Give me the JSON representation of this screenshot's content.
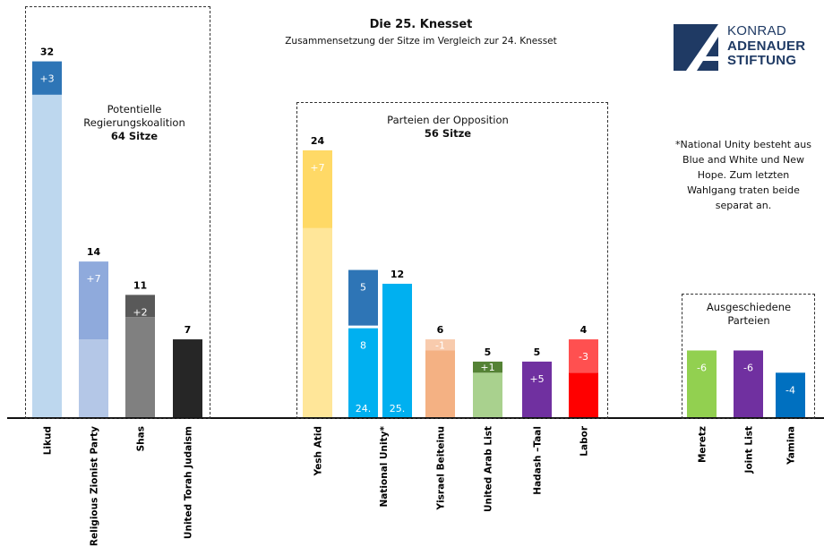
{
  "header": {
    "title": "Die 25. Knesset",
    "subtitle": "Zusammensetzung der Sitze im Vergleich zur 24. Knesset"
  },
  "logo": {
    "line1": "KONRAD",
    "line2": "ADENAUER",
    "line3": "STIFTUNG",
    "color": "#1f3a64"
  },
  "groups": {
    "coalition": {
      "label": "Potentielle Regierungskoalition",
      "seats": "64 Sitze"
    },
    "opposition": {
      "label": "Parteien der Opposition",
      "seats": "56 Sitze"
    },
    "dropped": {
      "label": "Ausgeschiedene Parteien"
    }
  },
  "note": "*National Unity besteht aus Blue and White und New Hope. Zum letzten Wahlgang traten beide separat an.",
  "chart_data": {
    "type": "bar",
    "title": "Die 25. Knesset",
    "subtitle": "Zusammensetzung der Sitze im Vergleich zur 24. Knesset",
    "xlabel": "",
    "ylabel": "",
    "ylim": [
      0,
      34
    ],
    "grid": false,
    "bars": [
      {
        "party": "Likud",
        "group": "coalition",
        "total": "32",
        "segments": [
          {
            "value": 29,
            "color": "#bdd7ee",
            "label": ""
          },
          {
            "value": 3,
            "color": "#2e75b6",
            "label": "+3"
          }
        ]
      },
      {
        "party": "Religious Zionist Party",
        "group": "coalition",
        "total": "14",
        "segments": [
          {
            "value": 7,
            "color": "#b4c7e7",
            "label": ""
          },
          {
            "value": 7,
            "color": "#8faadc",
            "label": "+7"
          }
        ]
      },
      {
        "party": "Shas",
        "group": "coalition",
        "total": "11",
        "segments": [
          {
            "value": 9,
            "color": "#808080",
            "label": ""
          },
          {
            "value": 2,
            "color": "#595959",
            "label": "+2"
          }
        ]
      },
      {
        "party": "United Torah Judaism",
        "group": "coalition",
        "total": "7",
        "segments": [
          {
            "value": 7,
            "color": "#262626",
            "label": ""
          }
        ]
      },
      {
        "party": "Yesh Atid",
        "group": "opposition",
        "total": "24",
        "segments": [
          {
            "value": 17,
            "color": "#ffe699",
            "label": ""
          },
          {
            "value": 7,
            "color": "#ffd966",
            "label": "+7"
          }
        ]
      },
      {
        "party": "National Unity*",
        "group": "opposition",
        "total": "",
        "segments": [
          {
            "value": 8,
            "color": "#00b0f0",
            "label": "8"
          },
          {
            "value": 5,
            "color": "#2e75b6",
            "label": "5"
          }
        ],
        "base_label": "24.",
        "gap": true
      },
      {
        "party": "",
        "group": "opposition",
        "total": "12",
        "segments": [
          {
            "value": 12,
            "color": "#00b0f0",
            "label": ""
          }
        ],
        "base_label": "25."
      },
      {
        "party": "Yisrael Beiteinu",
        "group": "opposition",
        "total": "6",
        "segments": [
          {
            "value": 6,
            "color": "#f4b183",
            "label": ""
          },
          {
            "value": 1,
            "color": "#f8cbad",
            "label": "-1"
          }
        ]
      },
      {
        "party": "United Arab List",
        "group": "opposition",
        "total": "5",
        "segments": [
          {
            "value": 4,
            "color": "#a9d18e",
            "label": ""
          },
          {
            "value": 1,
            "color": "#548235",
            "label": "+1"
          }
        ]
      },
      {
        "party": "Hadash –Taal",
        "group": "opposition",
        "total": "5",
        "segments": [
          {
            "value": 5,
            "color": "#7030a0",
            "label": "+5"
          }
        ]
      },
      {
        "party": "Labor",
        "group": "opposition",
        "total": "4",
        "segments": [
          {
            "value": 4,
            "color": "#ff0000",
            "label": ""
          },
          {
            "value": 3,
            "color": "#ff5050",
            "label": "-3"
          }
        ]
      },
      {
        "party": "Meretz",
        "group": "dropped",
        "total": "",
        "segments": [
          {
            "value": 6,
            "color": "#92d050",
            "label": "-6"
          }
        ]
      },
      {
        "party": "Joint List",
        "group": "dropped",
        "total": "",
        "segments": [
          {
            "value": 6,
            "color": "#7030a0",
            "label": "-6"
          }
        ]
      },
      {
        "party": "Yamina",
        "group": "dropped",
        "total": "",
        "segments": [
          {
            "value": 4,
            "color": "#0070c0",
            "label": "-4"
          }
        ]
      }
    ]
  }
}
